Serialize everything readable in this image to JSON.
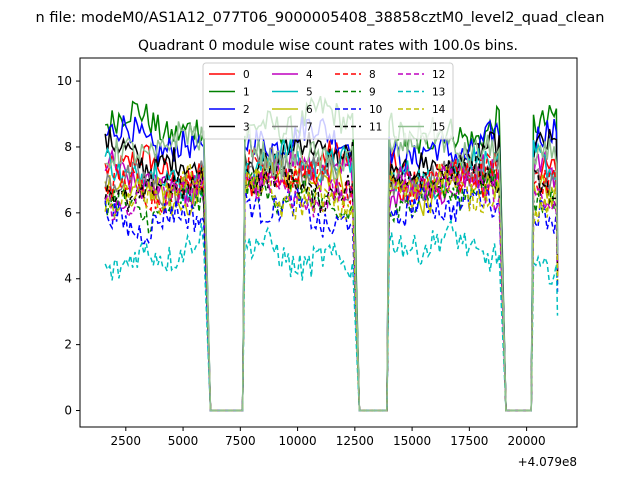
{
  "chart_data": {
    "type": "line",
    "suptitle": "n file: modeM0/AS1A12_077T06_9000005408_38858cztM0_level2_quad_clean",
    "title": "Quadrant 0 module wise count rates with 100.0s bins.",
    "xlabel": "",
    "ylabel": "",
    "x_offset_label": "+4.079e8",
    "xlim": [
      500,
      22200
    ],
    "ylim": [
      -0.5,
      10.7
    ],
    "xticks": [
      2500,
      5000,
      7500,
      10000,
      12500,
      15000,
      17500,
      20000
    ],
    "yticks": [
      0,
      2,
      4,
      6,
      8,
      10
    ],
    "legend_position": "top-center",
    "legend_columns": 4,
    "segments": [
      [
        1600,
        5900
      ],
      [
        7700,
        12400
      ],
      [
        14000,
        18800
      ],
      [
        20300,
        21300
      ]
    ],
    "gap_zero": [
      [
        6200,
        7600
      ],
      [
        12700,
        13900
      ],
      [
        19100,
        20200
      ]
    ],
    "series": [
      {
        "name": "0",
        "color": "#ff0000",
        "dashed": false,
        "level": 7.2
      },
      {
        "name": "1",
        "color": "#008000",
        "dashed": false,
        "level": 8.6
      },
      {
        "name": "2",
        "color": "#0000ff",
        "dashed": false,
        "level": 8.1
      },
      {
        "name": "3",
        "color": "#000000",
        "dashed": false,
        "level": 7.6
      },
      {
        "name": "4",
        "color": "#bf00bf",
        "dashed": false,
        "level": 7.0
      },
      {
        "name": "5",
        "color": "#00bfbf",
        "dashed": false,
        "level": 7.3
      },
      {
        "name": "6",
        "color": "#bfbf00",
        "dashed": false,
        "level": 6.8
      },
      {
        "name": "7",
        "color": "#7f7f7f",
        "dashed": false,
        "level": 7.1
      },
      {
        "name": "8",
        "color": "#ff0000",
        "dashed": true,
        "level": 7.0
      },
      {
        "name": "9",
        "color": "#008000",
        "dashed": true,
        "level": 6.4
      },
      {
        "name": "10",
        "color": "#0000ff",
        "dashed": true,
        "level": 6.0
      },
      {
        "name": "11",
        "color": "#000000",
        "dashed": true,
        "level": 6.9
      },
      {
        "name": "12",
        "color": "#bf00bf",
        "dashed": true,
        "level": 6.7
      },
      {
        "name": "13",
        "color": "#00bfbf",
        "dashed": true,
        "level": 4.8
      },
      {
        "name": "14",
        "color": "#bfbf00",
        "dashed": true,
        "level": 6.6
      },
      {
        "name": "15",
        "color": "#8fbf8f",
        "dashed": false,
        "level": 7.9
      }
    ]
  }
}
